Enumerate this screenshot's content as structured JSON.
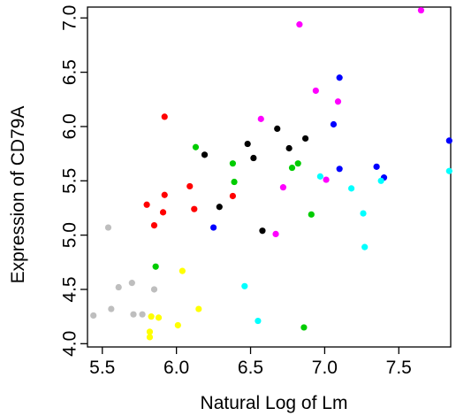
{
  "chart_data": {
    "type": "scatter",
    "xlabel": "Natural Log of Lm",
    "ylabel": "Expression of CD79A",
    "xlim": [
      5.4,
      7.85
    ],
    "ylim": [
      3.97,
      7.1
    ],
    "x_ticks": [
      5.5,
      6.0,
      6.5,
      7.0,
      7.5
    ],
    "x_tick_labels": [
      "5.5",
      "6.0",
      "6.5",
      "7.0",
      "7.5"
    ],
    "y_ticks": [
      4.0,
      4.5,
      5.0,
      5.5,
      6.0,
      6.5,
      7.0
    ],
    "y_tick_labels": [
      "4.0",
      "4.5",
      "5.0",
      "5.5",
      "6.0",
      "6.5",
      "7.0"
    ],
    "grid": false,
    "legend": "none",
    "series": [
      {
        "color": "#BEBEBE",
        "points": [
          [
            5.44,
            4.26
          ],
          [
            5.54,
            5.07
          ],
          [
            5.56,
            4.32
          ],
          [
            5.61,
            4.52
          ],
          [
            5.7,
            4.56
          ],
          [
            5.71,
            4.27
          ],
          [
            5.77,
            4.27
          ],
          [
            5.85,
            4.5
          ]
        ]
      },
      {
        "color": "#FFFF00",
        "points": [
          [
            5.82,
            4.11
          ],
          [
            5.82,
            4.06
          ],
          [
            5.83,
            4.25
          ],
          [
            5.88,
            4.24
          ],
          [
            6.01,
            4.17
          ],
          [
            6.04,
            4.67
          ],
          [
            6.15,
            4.32
          ]
        ]
      },
      {
        "color": "#FF0000",
        "points": [
          [
            5.8,
            5.28
          ],
          [
            5.85,
            5.09
          ],
          [
            5.91,
            5.21
          ],
          [
            5.92,
            5.37
          ],
          [
            5.92,
            6.09
          ],
          [
            6.09,
            5.45
          ],
          [
            6.12,
            5.24
          ],
          [
            6.38,
            5.36
          ]
        ]
      },
      {
        "color": "#000000",
        "points": [
          [
            6.19,
            5.74
          ],
          [
            6.29,
            5.26
          ],
          [
            6.48,
            5.84
          ],
          [
            6.52,
            5.71
          ],
          [
            6.58,
            5.04
          ],
          [
            6.68,
            5.98
          ],
          [
            6.76,
            5.8
          ],
          [
            6.87,
            5.89
          ]
        ]
      },
      {
        "color": "#00CC00",
        "points": [
          [
            5.86,
            4.71
          ],
          [
            6.13,
            5.81
          ],
          [
            6.38,
            5.66
          ],
          [
            6.39,
            5.49
          ],
          [
            6.78,
            5.62
          ],
          [
            6.82,
            5.66
          ],
          [
            6.86,
            4.15
          ],
          [
            6.91,
            5.19
          ]
        ]
      },
      {
        "color": "#0000FF",
        "points": [
          [
            6.25,
            5.07
          ],
          [
            7.06,
            6.02
          ],
          [
            7.1,
            6.45
          ],
          [
            7.1,
            5.61
          ],
          [
            7.35,
            5.63
          ],
          [
            7.4,
            5.53
          ],
          [
            7.84,
            5.87
          ]
        ]
      },
      {
        "color": "#FF00FF",
        "points": [
          [
            6.57,
            6.07
          ],
          [
            6.67,
            5.01
          ],
          [
            6.72,
            5.44
          ],
          [
            6.83,
            6.94
          ],
          [
            6.94,
            6.33
          ],
          [
            7.01,
            5.51
          ],
          [
            7.09,
            6.23
          ],
          [
            7.65,
            7.07
          ]
        ]
      },
      {
        "color": "#00FFFF",
        "points": [
          [
            6.46,
            4.53
          ],
          [
            6.55,
            4.21
          ],
          [
            6.97,
            5.54
          ],
          [
            7.18,
            5.43
          ],
          [
            7.26,
            5.2
          ],
          [
            7.27,
            4.89
          ],
          [
            7.38,
            5.5
          ],
          [
            7.84,
            5.59
          ]
        ]
      }
    ]
  }
}
